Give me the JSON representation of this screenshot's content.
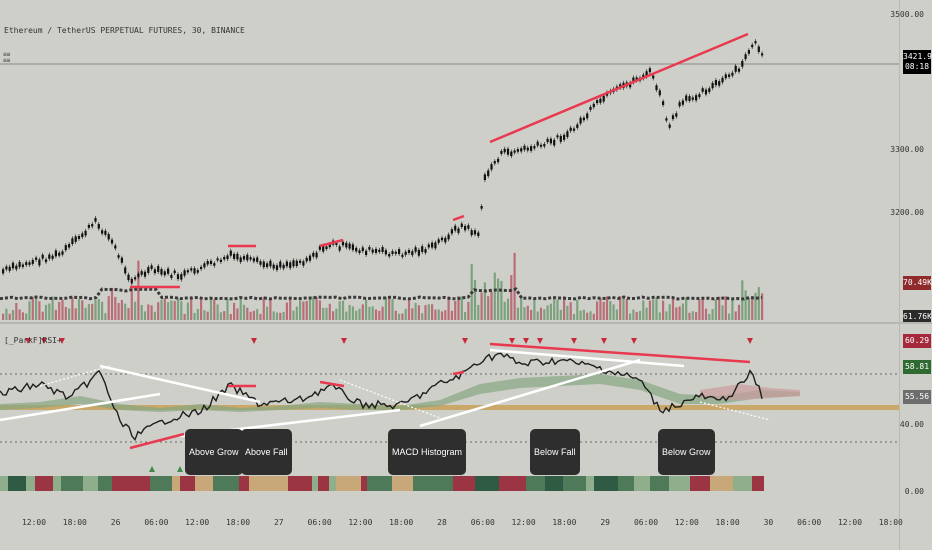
{
  "header": {
    "symbol_line": "Ethereum / TetherUS PERPETUAL FUTURES, 30, BINANCE"
  },
  "indicator": {
    "title": "[_ParkF]RSI+"
  },
  "price_axis": {
    "ticks": [
      "3500.00",
      "3300.00",
      "3200.00"
    ]
  },
  "price_badge": {
    "value": "3421.91",
    "countdown": "08:18",
    "bg": "#000000"
  },
  "volume_badges": [
    {
      "value": "70.49K",
      "bg": "#8f2b2b"
    },
    {
      "value": "61.76K",
      "bg": "#2b2b2b"
    }
  ],
  "rsi_axis": {
    "ticks": [
      "40.00",
      "0.00"
    ]
  },
  "rsi_badges": [
    {
      "value": "60.29",
      "bg": "#a5283b"
    },
    {
      "value": "58.81",
      "bg": "#2f6a32"
    },
    {
      "value": "55.56",
      "bg": "#6d6d6d"
    }
  ],
  "time_axis": [
    "12:00",
    "18:00",
    "26",
    "06:00",
    "12:00",
    "18:00",
    "27",
    "06:00",
    "12:00",
    "18:00",
    "28",
    "06:00",
    "12:00",
    "18:00",
    "29",
    "06:00",
    "12:00",
    "18:00",
    "30",
    "06:00",
    "12:00",
    "18:00"
  ],
  "annotations": [
    {
      "label": "Above Grow"
    },
    {
      "label": "Above Fall"
    },
    {
      "label": "MACD Histogram"
    },
    {
      "label": "Below Fall"
    },
    {
      "label": "Below Grow"
    }
  ],
  "colors": {
    "background": "#cfcfca",
    "bull": "#5b8a5e",
    "bear": "#b24a56",
    "trendline": "#e8394f",
    "wma": "#c9a86a"
  }
}
